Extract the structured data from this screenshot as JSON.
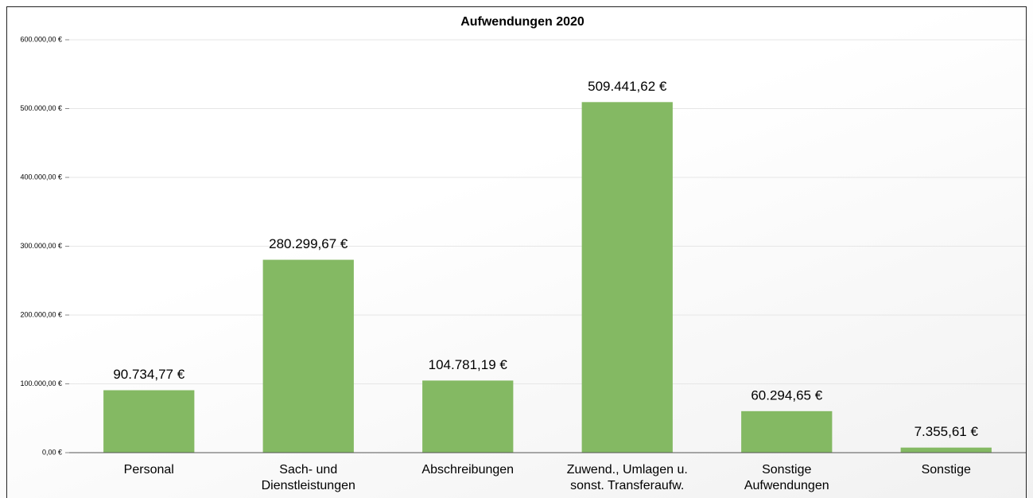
{
  "chart_data": {
    "type": "bar",
    "title": "Aufwendungen 2020",
    "categories": [
      "Personal",
      "Sach- und Dienstleistungen",
      "Abschreibungen",
      "Zuwend., Umlagen u. sonst. Transferaufw.",
      "Sonstige Aufwendungen",
      "Sonstige"
    ],
    "values": [
      90734.77,
      280299.67,
      104781.19,
      509441.62,
      60294.65,
      7355.61
    ],
    "value_labels": [
      "90.734,77 €",
      "280.299,67 €",
      "104.781,19 €",
      "509.441,62 €",
      "60.294,65 €",
      "7.355,61 €"
    ],
    "color": "#84b963",
    "ylim": [
      0,
      600000
    ],
    "yticks": [
      {
        "value": 0,
        "label": "0,00 €"
      },
      {
        "value": 100000,
        "label": "100.000,00 €"
      },
      {
        "value": 200000,
        "label": "200.000,00 €"
      },
      {
        "value": 300000,
        "label": "300.000,00 €"
      },
      {
        "value": 400000,
        "label": "400.000,00 €"
      },
      {
        "value": 500000,
        "label": "500.000,00 €"
      },
      {
        "value": 600000,
        "label": "600.000,00 €"
      }
    ],
    "grid": true
  }
}
